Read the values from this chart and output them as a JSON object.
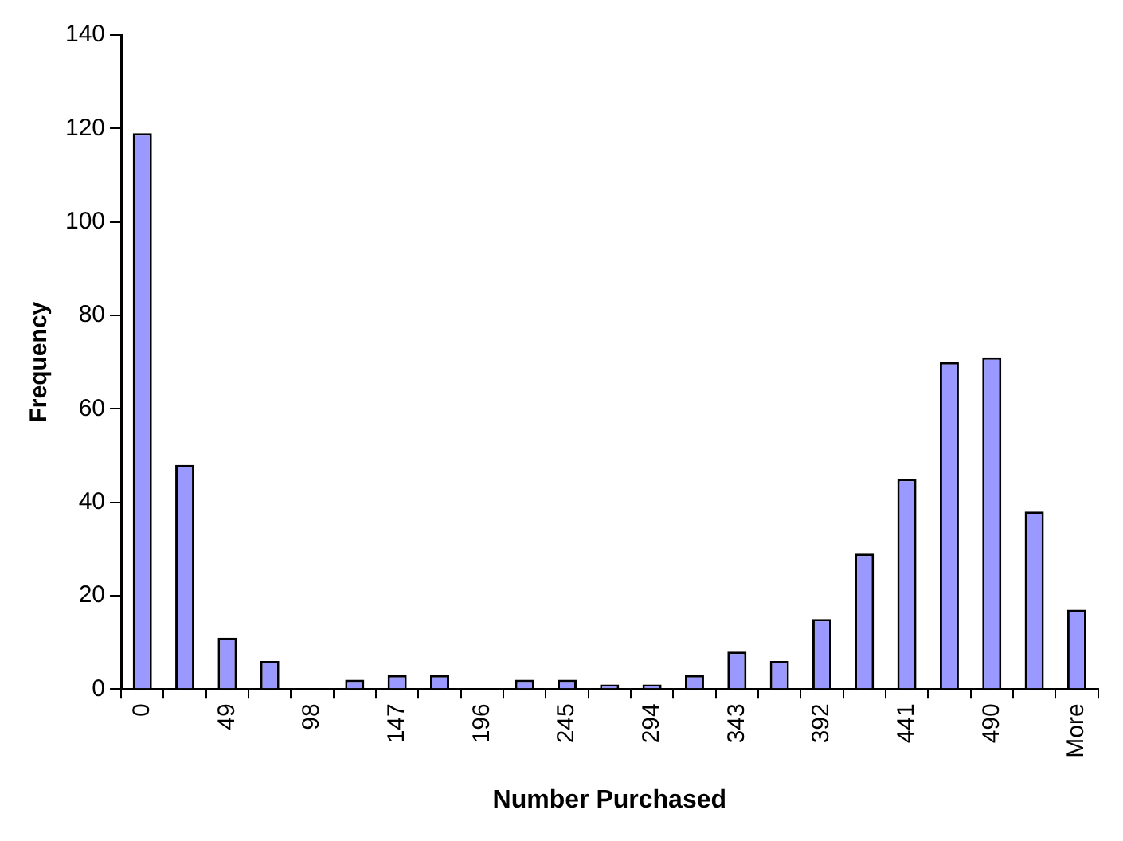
{
  "chart_data": {
    "type": "bar",
    "xlabel": "Number Purchased",
    "ylabel": "Frequency",
    "categories": [
      "0",
      null,
      "49",
      null,
      "98",
      null,
      "147",
      null,
      "196",
      null,
      "245",
      null,
      "294",
      null,
      "343",
      null,
      "392",
      null,
      "441",
      null,
      "490",
      null,
      "More"
    ],
    "values": [
      119,
      48,
      11,
      6,
      0,
      2,
      3,
      3,
      0,
      2,
      2,
      1,
      1,
      3,
      8,
      6,
      15,
      29,
      45,
      70,
      71,
      38,
      17
    ],
    "color": "#9999ff",
    "ylim": [
      0,
      140
    ],
    "yticks": [
      0,
      20,
      40,
      60,
      80,
      100,
      120,
      140
    ],
    "grid": false,
    "legend": false
  }
}
